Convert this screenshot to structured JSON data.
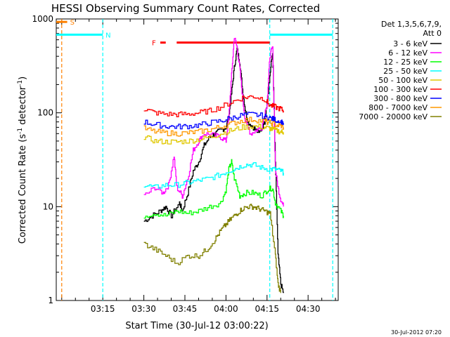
{
  "chart_data": {
    "type": "line",
    "title": "HESSI Observing Summary Count Rates, Corrected",
    "ylabel_main": "Corrected Count Rate (s",
    "ylabel_sup1": "-1",
    "ylabel_mid": " detector",
    "ylabel_sup2": "-1",
    "ylabel_end": ")",
    "xlabel": "Start Time (30-Jul-12 03:00:22)",
    "footer": "30-Jul-2012 07:20",
    "yscale": "log",
    "ylim": [
      1,
      1000
    ],
    "xlim_minutes": [
      -2,
      101
    ],
    "x_ticks": [
      {
        "m": 15,
        "label": "03:15"
      },
      {
        "m": 30,
        "label": "03:30"
      },
      {
        "m": 45,
        "label": "03:45"
      },
      {
        "m": 60,
        "label": "04:00"
      },
      {
        "m": 75,
        "label": "04:15"
      },
      {
        "m": 90,
        "label": "04:30"
      }
    ],
    "y_ticks": [
      {
        "v": 1,
        "label": "1"
      },
      {
        "v": 10,
        "label": "10"
      },
      {
        "v": 100,
        "label": "100"
      },
      {
        "v": 1000,
        "label": "1000"
      }
    ],
    "legend_header": [
      "Det 1,3,5,6,7,9,",
      "Att 0"
    ],
    "legend_placement": "right",
    "series": [
      {
        "name": "3 - 6 keV",
        "color": "#000000",
        "points": [
          [
            30,
            7
          ],
          [
            33,
            8
          ],
          [
            36,
            9
          ],
          [
            38,
            10
          ],
          [
            40,
            8
          ],
          [
            43,
            11
          ],
          [
            44,
            9
          ],
          [
            46,
            14
          ],
          [
            48,
            24
          ],
          [
            50,
            30
          ],
          [
            52,
            45
          ],
          [
            54,
            55
          ],
          [
            56,
            60
          ],
          [
            58,
            65
          ],
          [
            60,
            70
          ],
          [
            61,
            90
          ],
          [
            62,
            160
          ],
          [
            63,
            300
          ],
          [
            64,
            480
          ],
          [
            65,
            350
          ],
          [
            66,
            180
          ],
          [
            67,
            110
          ],
          [
            68,
            80
          ],
          [
            70,
            70
          ],
          [
            72,
            60
          ],
          [
            74,
            80
          ],
          [
            76,
            250
          ],
          [
            77,
            450
          ],
          [
            78,
            30
          ],
          [
            79,
            3
          ],
          [
            80,
            1.5
          ],
          [
            81,
            1.2
          ]
        ]
      },
      {
        "name": "6 - 12 keV",
        "color": "#ff00ff",
        "points": [
          [
            30,
            13
          ],
          [
            34,
            16
          ],
          [
            37,
            14
          ],
          [
            39,
            17
          ],
          [
            41,
            35
          ],
          [
            42,
            16
          ],
          [
            44,
            13
          ],
          [
            46,
            20
          ],
          [
            48,
            40
          ],
          [
            50,
            50
          ],
          [
            52,
            60
          ],
          [
            55,
            58
          ],
          [
            58,
            55
          ],
          [
            60,
            50
          ],
          [
            61,
            90
          ],
          [
            62,
            250
          ],
          [
            63,
            650
          ],
          [
            64,
            500
          ],
          [
            65,
            300
          ],
          [
            66,
            150
          ],
          [
            67,
            80
          ],
          [
            69,
            60
          ],
          [
            71,
            65
          ],
          [
            73,
            70
          ],
          [
            75,
            130
          ],
          [
            76,
            400
          ],
          [
            77,
            500
          ],
          [
            78,
            25
          ],
          [
            79,
            16
          ],
          [
            80,
            12
          ],
          [
            81,
            10
          ]
        ]
      },
      {
        "name": "12 - 25 keV",
        "color": "#00ff00",
        "points": [
          [
            30,
            8
          ],
          [
            34,
            8.5
          ],
          [
            38,
            8
          ],
          [
            42,
            9
          ],
          [
            46,
            8.5
          ],
          [
            50,
            9
          ],
          [
            54,
            10
          ],
          [
            58,
            11
          ],
          [
            60,
            15
          ],
          [
            61,
            25
          ],
          [
            62,
            30
          ],
          [
            63,
            20
          ],
          [
            65,
            13
          ],
          [
            67,
            14
          ],
          [
            70,
            14
          ],
          [
            73,
            13
          ],
          [
            75,
            15
          ],
          [
            77,
            16
          ],
          [
            78,
            11
          ],
          [
            80,
            9
          ],
          [
            81,
            8
          ]
        ]
      },
      {
        "name": "25 - 50 keV",
        "color": "#00ffff",
        "points": [
          [
            30,
            17
          ],
          [
            34,
            16
          ],
          [
            38,
            17
          ],
          [
            42,
            17
          ],
          [
            46,
            18
          ],
          [
            50,
            19
          ],
          [
            54,
            20
          ],
          [
            58,
            22
          ],
          [
            61,
            24
          ],
          [
            64,
            26
          ],
          [
            67,
            28
          ],
          [
            70,
            28
          ],
          [
            73,
            26
          ],
          [
            76,
            25
          ],
          [
            78,
            25
          ],
          [
            80,
            24
          ],
          [
            81,
            23
          ]
        ]
      },
      {
        "name": "50 - 100 keV",
        "color": "#e0c800",
        "points": [
          [
            30,
            55
          ],
          [
            34,
            50
          ],
          [
            38,
            49
          ],
          [
            42,
            49
          ],
          [
            46,
            50
          ],
          [
            50,
            52
          ],
          [
            54,
            55
          ],
          [
            58,
            60
          ],
          [
            62,
            65
          ],
          [
            66,
            70
          ],
          [
            70,
            72
          ],
          [
            74,
            70
          ],
          [
            76,
            68
          ],
          [
            78,
            65
          ],
          [
            80,
            63
          ],
          [
            81,
            62
          ]
        ]
      },
      {
        "name": "100 - 300 keV",
        "color": "#ff0000",
        "points": [
          [
            30,
            110
          ],
          [
            34,
            100
          ],
          [
            38,
            97
          ],
          [
            42,
            96
          ],
          [
            46,
            97
          ],
          [
            50,
            100
          ],
          [
            54,
            105
          ],
          [
            58,
            115
          ],
          [
            62,
            130
          ],
          [
            66,
            145
          ],
          [
            70,
            150
          ],
          [
            74,
            140
          ],
          [
            76,
            120
          ],
          [
            78,
            115
          ],
          [
            80,
            110
          ],
          [
            81,
            105
          ]
        ]
      },
      {
        "name": "300 - 800 keV",
        "color": "#0000ff",
        "points": [
          [
            30,
            80
          ],
          [
            34,
            75
          ],
          [
            38,
            72
          ],
          [
            42,
            71
          ],
          [
            46,
            72
          ],
          [
            50,
            74
          ],
          [
            54,
            78
          ],
          [
            58,
            82
          ],
          [
            62,
            88
          ],
          [
            66,
            95
          ],
          [
            70,
            96
          ],
          [
            74,
            92
          ],
          [
            76,
            88
          ],
          [
            78,
            84
          ],
          [
            80,
            80
          ],
          [
            81,
            78
          ]
        ]
      },
      {
        "name": "800 - 7000 keV",
        "color": "#ff9900",
        "points": [
          [
            30,
            68
          ],
          [
            34,
            63
          ],
          [
            38,
            61
          ],
          [
            42,
            60
          ],
          [
            46,
            61
          ],
          [
            50,
            63
          ],
          [
            54,
            66
          ],
          [
            58,
            71
          ],
          [
            62,
            77
          ],
          [
            66,
            83
          ],
          [
            70,
            85
          ],
          [
            74,
            81
          ],
          [
            76,
            78
          ],
          [
            78,
            75
          ],
          [
            80,
            72
          ],
          [
            81,
            70
          ]
        ]
      },
      {
        "name": "7000 - 20000 keV",
        "color": "#808000",
        "points": [
          [
            30,
            4
          ],
          [
            34,
            3.5
          ],
          [
            38,
            3
          ],
          [
            42,
            2.5
          ],
          [
            46,
            3
          ],
          [
            50,
            3
          ],
          [
            53,
            3.5
          ],
          [
            56,
            4.5
          ],
          [
            58,
            5.5
          ],
          [
            60,
            6.5
          ],
          [
            62,
            7.5
          ],
          [
            64,
            8.5
          ],
          [
            66,
            9.5
          ],
          [
            68,
            10
          ],
          [
            70,
            10
          ],
          [
            72,
            9.5
          ],
          [
            74,
            9
          ],
          [
            76,
            8.5
          ],
          [
            78,
            3
          ],
          [
            79,
            1.5
          ],
          [
            80,
            1.2
          ]
        ]
      }
    ],
    "flags": [
      {
        "label": "S",
        "color": "#ff8000",
        "y": 930,
        "x1": -2,
        "x2": 2
      },
      {
        "label": "N",
        "color": "#00ffff",
        "y": 680,
        "x1": -2,
        "x2": 15
      },
      {
        "label": "F",
        "color": "#ff0000",
        "y": 560,
        "segments": [
          [
            36,
            38
          ],
          [
            42,
            76
          ]
        ]
      },
      {
        "label": "",
        "color": "#00ffff",
        "y": 680,
        "x1": 76,
        "x2": 99
      }
    ],
    "vlines": [
      {
        "m": 0,
        "color": "#ff8000"
      },
      {
        "m": 15,
        "color": "#00ffff"
      },
      {
        "m": 76,
        "color": "#00ffff"
      },
      {
        "m": 99,
        "color": "#00ffff"
      }
    ]
  }
}
